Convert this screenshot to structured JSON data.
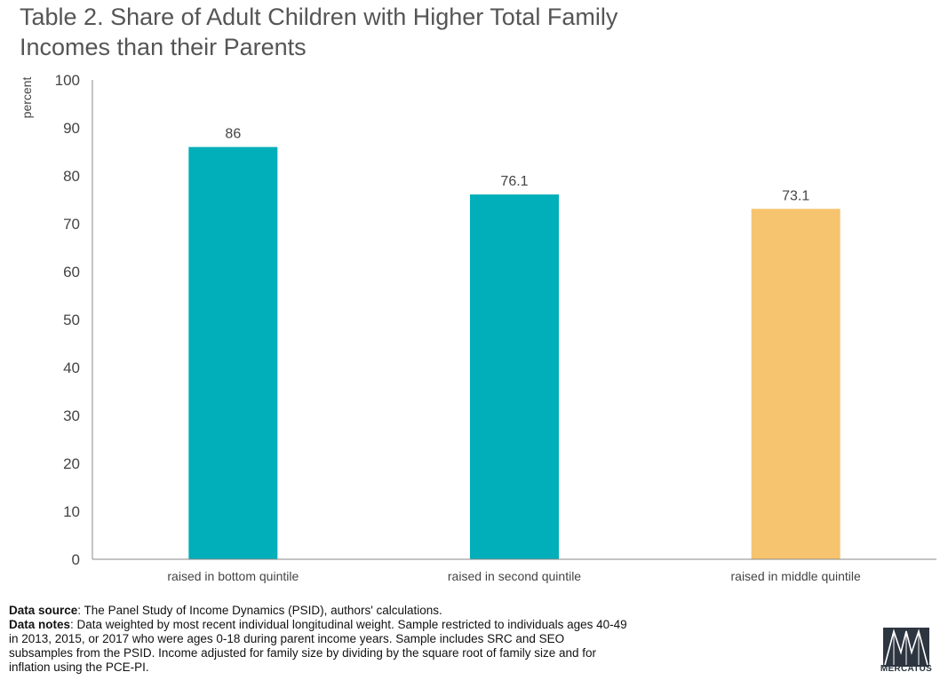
{
  "chart_data": {
    "type": "bar",
    "title_lines": [
      "Table 2. Share of Adult Children with Higher Total Family",
      "Incomes than their Parents"
    ],
    "ylabel": "percent",
    "xlabel": "",
    "ylim": [
      0,
      100
    ],
    "yticks": [
      0,
      10,
      20,
      30,
      40,
      50,
      60,
      70,
      80,
      90,
      100
    ],
    "categories": [
      "raised in bottom quintile",
      "raised in second quintile",
      "raised in middle quintile"
    ],
    "values": [
      86,
      76.1,
      73.1
    ],
    "value_labels": [
      "86",
      "76.1",
      "73.1"
    ],
    "bar_colors": [
      "#00afb9",
      "#00afb9",
      "#f6c46e"
    ],
    "grid": false,
    "legend": "none"
  },
  "notes": {
    "source_label": "Data source",
    "source_text": ": The Panel Study of Income Dynamics (PSID), authors' calculations.",
    "notes_label": "Data notes",
    "notes_text": ": Data weighted by most recent individual longitudinal weight. Sample restricted to individuals ages 40-49 in 2013, 2015, or 2017 who were ages 0-18 during parent income years. Sample includes SRC and SEO subsamples from the PSID. Income adjusted for family size by dividing by the square root of family size and for inflation using the PCE-PI."
  },
  "logo": {
    "icon": "mercatus-logo-icon",
    "text": "MERCATUS"
  }
}
